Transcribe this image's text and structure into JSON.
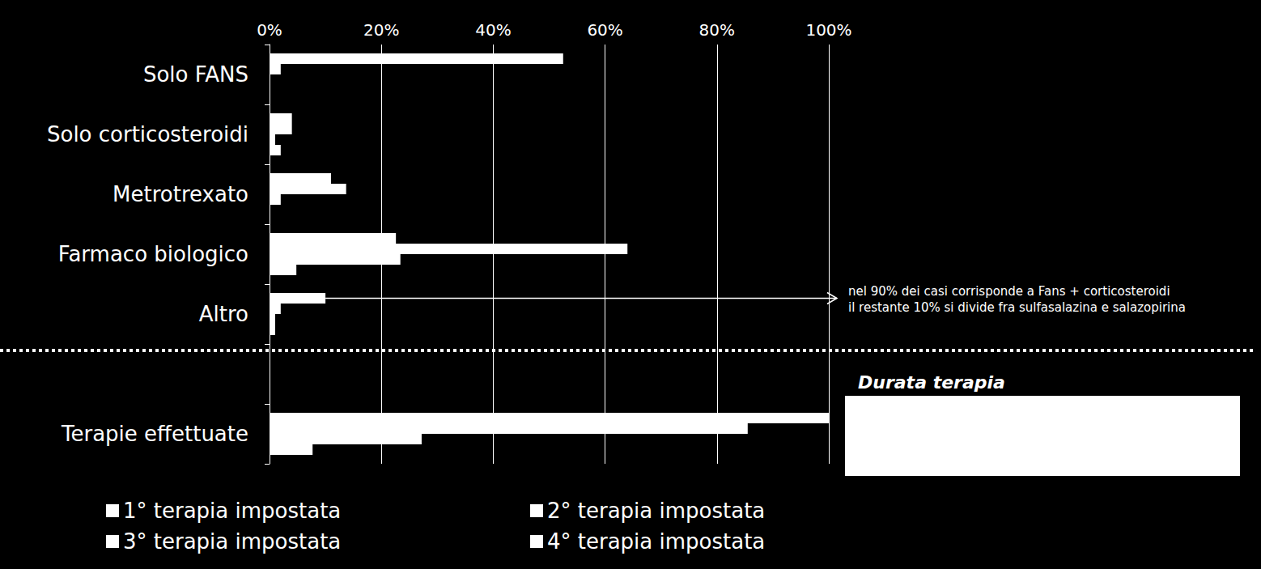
{
  "chart_data": {
    "type": "bar",
    "orientation": "horizontal",
    "categories": [
      "Solo FANS",
      "Solo corticosteroidi",
      "Metrotrexato",
      "Farmaco biologico",
      "Altro",
      null,
      "Terapie effettuate"
    ],
    "series": [
      {
        "name": "1° terapia impostata",
        "color": "#ffffff",
        "values": [
          52.5,
          4,
          11,
          22.6,
          10,
          null,
          100
        ]
      },
      {
        "name": "2° terapia impostata",
        "color": "#ffffff",
        "values": [
          2,
          4,
          13.7,
          64,
          2,
          null,
          85.5
        ]
      },
      {
        "name": "3° terapia impostata",
        "color": "#ffffff",
        "values": [
          0,
          1,
          2,
          23.4,
          1,
          null,
          27.2
        ]
      },
      {
        "name": "4° terapia impostata",
        "color": "#ffffff",
        "values": [
          0,
          2,
          0,
          4.8,
          1,
          null,
          7.7
        ]
      }
    ],
    "xlim": [
      0,
      100
    ],
    "xticks": [
      {
        "value": 0,
        "label": "0%"
      },
      {
        "value": 20,
        "label": "20%"
      },
      {
        "value": 40,
        "label": "40%"
      },
      {
        "value": 60,
        "label": "60%"
      },
      {
        "value": 80,
        "label": "80%"
      },
      {
        "value": 100,
        "label": "100%"
      }
    ],
    "grid": true,
    "legend": "bottom",
    "annotations": [
      "nel 90% dei casi corrisponde a Fans + corticosteroidi\nil restante 10% si divide fra sulfasalazina e salazopirina",
      "Durata terapia"
    ]
  }
}
